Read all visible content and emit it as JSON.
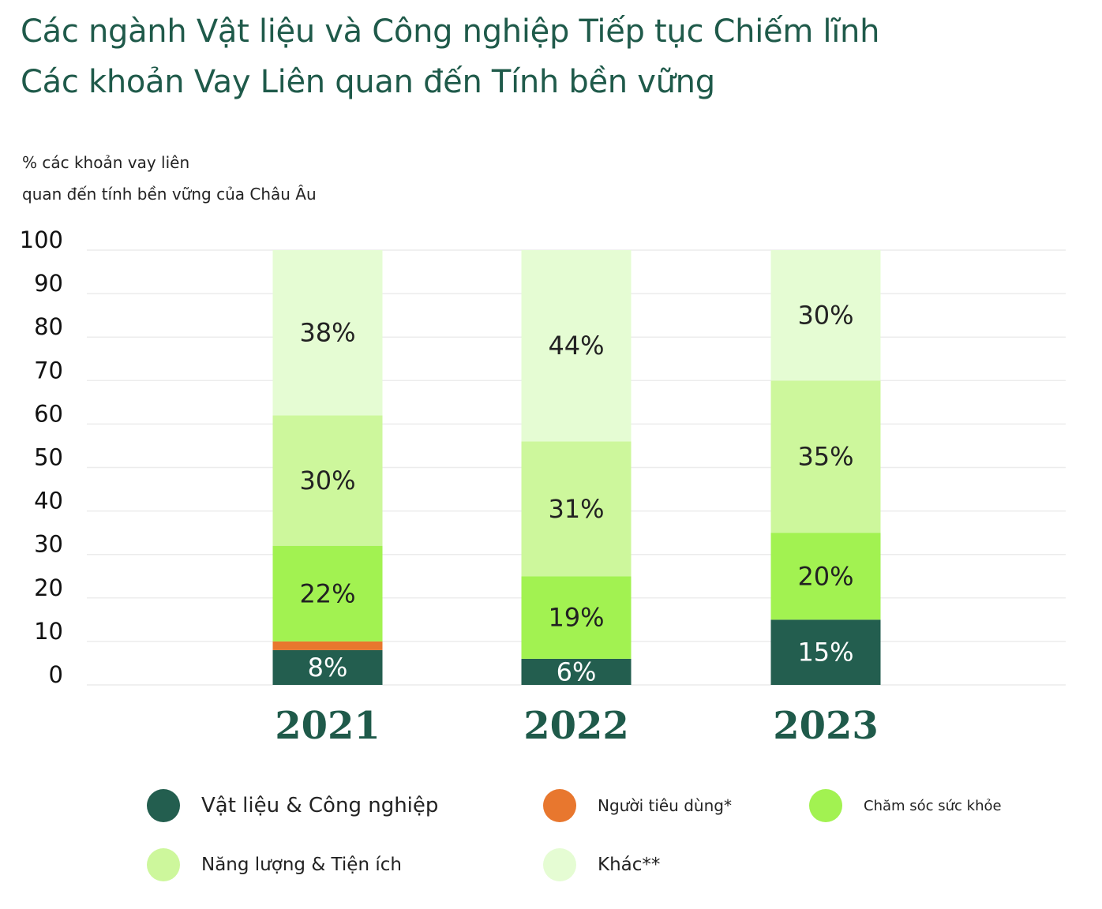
{
  "title": "Các ngành Vật liệu và Công nghiệp Tiếp tục Chiếm lĩnh Các khoản Vay Liên quan đến Tính bền vững",
  "ylabel": "% các khoản vay liên\nquan đến tính bền vững của Châu Âu",
  "chart_data": {
    "type": "bar",
    "stacked": true,
    "title": "Các ngành Vật liệu và Công nghiệp Tiếp tục Chiếm lĩnh Các khoản Vay Liên quan đến Tính bền vững",
    "ylabel": "% các khoản vay liên quan đến tính bền vững của Châu Âu",
    "xlabel": "",
    "categories": [
      "2021",
      "2022",
      "2023"
    ],
    "ylim": [
      0,
      100
    ],
    "yticks": [
      0,
      10,
      20,
      30,
      40,
      50,
      60,
      70,
      80,
      90,
      100
    ],
    "grid": true,
    "legend_position": "bottom",
    "series": [
      {
        "name": "Vật liệu & Công nghiệp",
        "color": "#235e4f",
        "values": [
          8,
          6,
          15
        ],
        "labels": [
          "8%",
          "6%",
          "15%"
        ],
        "label_color": "#ffffff"
      },
      {
        "name": "Người tiêu dùng*",
        "color": "#e8772e",
        "values": [
          2,
          0,
          0
        ],
        "labels": [
          "",
          "",
          ""
        ],
        "label_color": "#222222"
      },
      {
        "name": "Chăm sóc sức khỏe",
        "color": "#a2f251",
        "values": [
          22,
          19,
          20
        ],
        "labels": [
          "22%",
          "19%",
          "20%"
        ],
        "label_color": "#222222"
      },
      {
        "name": "Năng lượng & Tiện ích",
        "color": "#cdf79c",
        "values": [
          30,
          31,
          35
        ],
        "labels": [
          "30%",
          "31%",
          "35%"
        ],
        "label_color": "#222222"
      },
      {
        "name": "Khác**",
        "color": "#e5fcd3",
        "values": [
          38,
          44,
          30
        ],
        "labels": [
          "38%",
          "44%",
          "30%"
        ],
        "label_color": "#222222"
      }
    ]
  },
  "legend": {
    "items": [
      {
        "label": "Vật liệu & Công nghiệp",
        "color": "#235e4f"
      },
      {
        "label": "Người tiêu dùng*",
        "color": "#e8772e"
      },
      {
        "label": "Chăm sóc sức khỏe",
        "color": "#a2f251"
      },
      {
        "label": "Năng lượng & Tiện ích",
        "color": "#cdf79c"
      },
      {
        "label": "Khác**",
        "color": "#e5fcd3"
      }
    ]
  }
}
